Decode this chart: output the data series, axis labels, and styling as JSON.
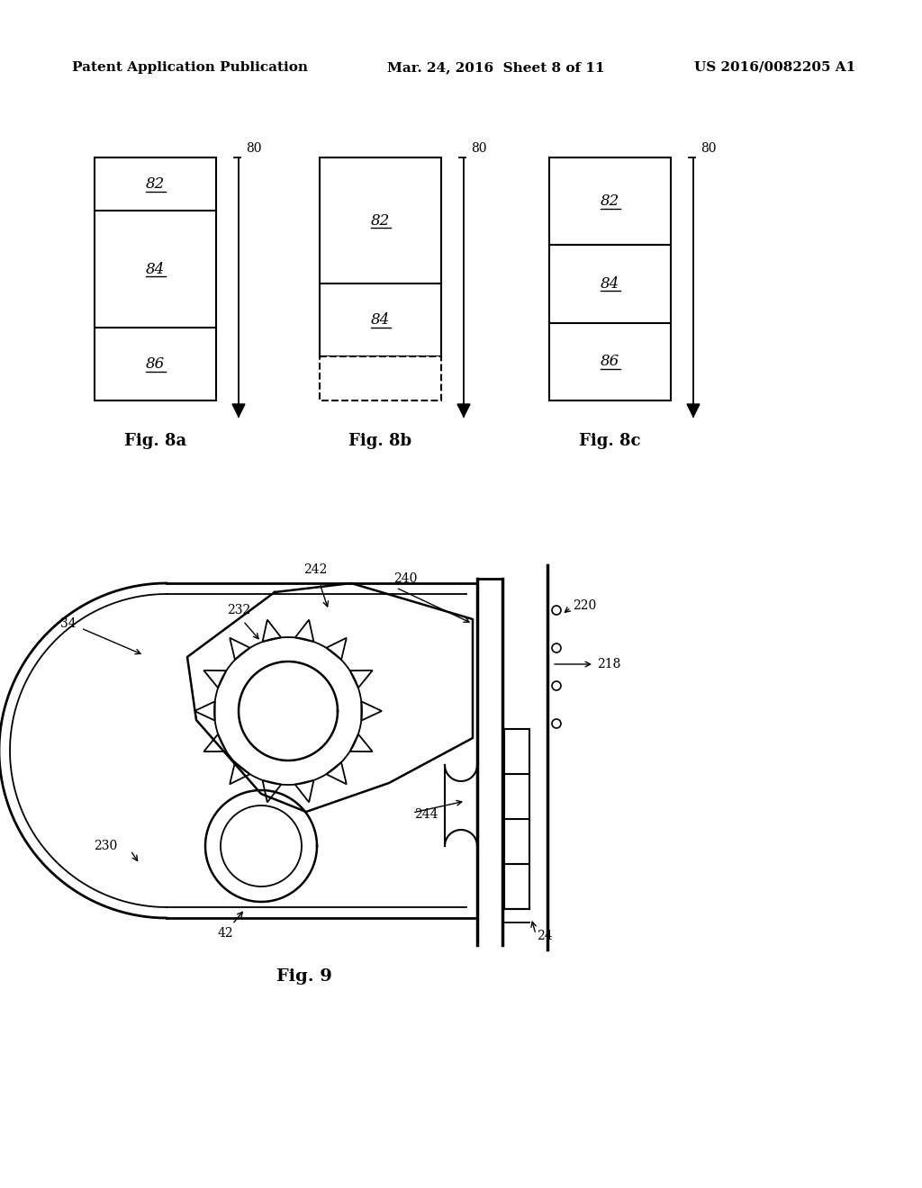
{
  "bg_color": "#ffffff",
  "header_left": "Patent Application Publication",
  "header_mid": "Mar. 24, 2016  Sheet 8 of 11",
  "header_right": "US 2016/0082205 A1",
  "fig8a_label": "Fig. 8a",
  "fig8b_label": "Fig. 8b",
  "fig8c_label": "Fig. 8c",
  "fig9_label": "Fig. 9",
  "label_82": "82",
  "label_84": "84",
  "label_86": "86",
  "label_80": "80",
  "label_34": "34",
  "label_42": "42",
  "label_24": "24",
  "label_218": "218",
  "label_220": "220",
  "label_230": "230",
  "label_232": "232",
  "label_240": "240",
  "label_242": "242",
  "label_244": "244"
}
